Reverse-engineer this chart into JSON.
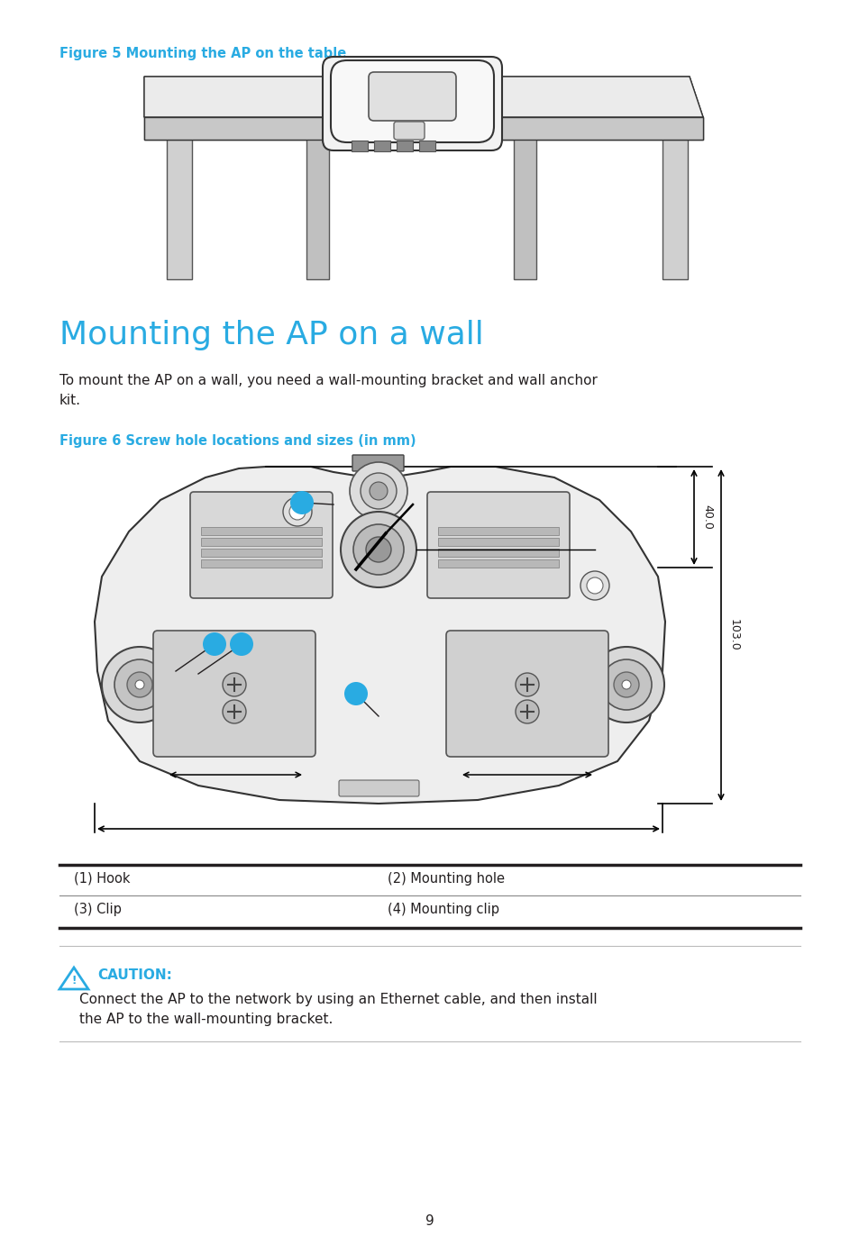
{
  "fig_width": 9.54,
  "fig_height": 13.82,
  "bg_color": "#ffffff",
  "cyan_color": "#29ABE2",
  "black_color": "#231F20",
  "gray_light": "#e8e8e8",
  "gray_mid": "#cccccc",
  "gray_dark": "#aaaaaa",
  "figure5_caption": "Figure 5 Mounting the AP on the table",
  "section_title": "Mounting the AP on a wall",
  "body_text": "To mount the AP on a wall, you need a wall-mounting bracket and wall anchor\nkit.",
  "figure6_caption": "Figure 6 Screw hole locations and sizes (in mm)",
  "dim_40": "40.0",
  "dim_103": "103.0",
  "table_row1_col1": "(1) Hook",
  "table_row1_col2": "(2) Mounting hole",
  "table_row2_col1": "(3) Clip",
  "table_row2_col2": "(4) Mounting clip",
  "caution_label": "CAUTION:",
  "caution_text": "Connect the AP to the network by using an Ethernet cable, and then install\nthe AP to the wall-mounting bracket.",
  "page_number": "9"
}
